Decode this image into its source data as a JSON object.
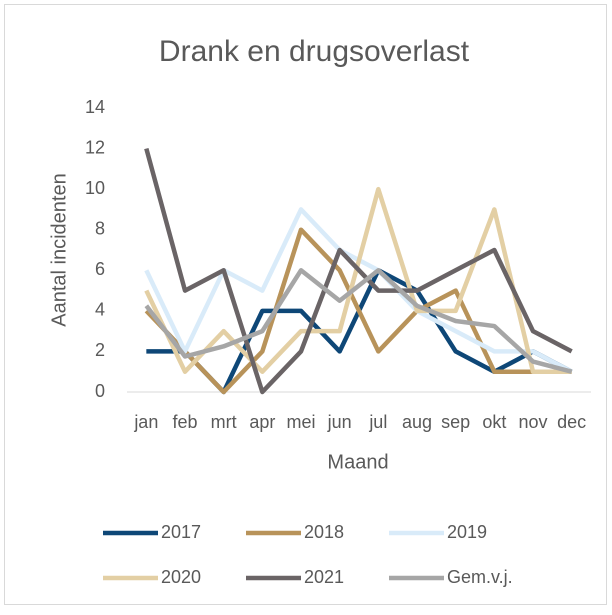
{
  "chart_data": {
    "type": "line",
    "title": "Drank en drugsoverlast",
    "x_label": "Maand",
    "y_label": "Aantal incidenten",
    "categories": [
      "jan",
      "feb",
      "mrt",
      "apr",
      "mei",
      "jun",
      "jul",
      "aug",
      "sep",
      "okt",
      "nov",
      "dec"
    ],
    "ylim": [
      0,
      14
    ],
    "yticks": [
      0,
      2,
      4,
      6,
      8,
      10,
      12,
      14
    ],
    "grid": false,
    "legend": "bottom",
    "series": [
      {
        "name": "2017",
        "color": "#0e4777",
        "values": [
          2,
          2,
          0,
          4,
          4,
          2,
          6,
          5,
          2,
          1,
          2,
          1
        ]
      },
      {
        "name": "2018",
        "color": "#b8935a",
        "values": [
          4,
          2,
          0,
          2,
          8,
          6,
          2,
          4,
          5,
          1,
          1,
          1
        ]
      },
      {
        "name": "2019",
        "color": "#d9ebf9",
        "values": [
          6,
          2,
          6,
          5,
          9,
          7,
          6,
          4,
          3,
          2,
          2,
          1
        ]
      },
      {
        "name": "2020",
        "color": "#e3cfa4",
        "values": [
          5,
          1,
          3,
          1,
          3,
          3,
          10,
          4,
          4,
          9,
          1,
          1
        ]
      },
      {
        "name": "2021",
        "color": "#6a6466",
        "values": [
          12,
          5,
          6,
          0,
          2,
          7,
          5,
          5,
          6,
          7,
          3,
          2
        ]
      },
      {
        "name": "Gem.v.j.",
        "color": "#a6a6a6",
        "values": [
          4.25,
          1.75,
          2.25,
          3,
          6,
          4.5,
          6,
          4.25,
          3.5,
          3.25,
          1.5,
          1
        ]
      }
    ]
  }
}
